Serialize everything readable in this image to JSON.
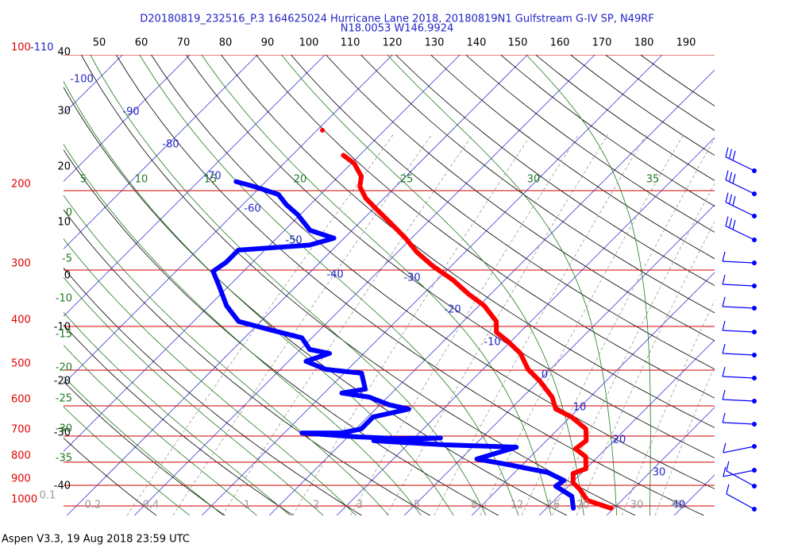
{
  "chart_data": {
    "type": "skewt",
    "title": "D20180819_232516_P.3 164625024 Hurricane Lane 2018, 20180819N1 Gulfstream G-IV SP, N49RF",
    "subtitle": "N18.0053 W146.9924",
    "footer": "Aspen V3.3, 19 Aug 2018  23:59 UTC",
    "ylim": [
      100,
      1050
    ],
    "yticks": [
      100,
      200,
      300,
      400,
      500,
      600,
      700,
      800,
      900,
      1000
    ],
    "log_y": true,
    "xlim": [
      -50.5,
      46
    ],
    "isotherms": [
      -110,
      -100,
      -90,
      -80,
      -70,
      -60,
      -50,
      -40,
      -30,
      -20,
      -10,
      0,
      10,
      20,
      30,
      40
    ],
    "dry_adiabats_top": [
      50,
      60,
      70,
      80,
      90,
      100,
      110,
      120,
      130,
      140,
      150,
      160,
      170,
      180,
      190
    ],
    "dry_adiabats_left": [
      40,
      30,
      20,
      10,
      0,
      -10,
      -20,
      -30,
      -40
    ],
    "moist_adiabats_top": [
      5,
      10,
      15,
      20,
      25,
      30,
      35
    ],
    "moist_adiabats_left": [
      0,
      -5,
      -10,
      -15,
      -20,
      -25,
      -30,
      -35
    ],
    "mixing_ratios": [
      0.1,
      0.2,
      0.4,
      1,
      2,
      3,
      5,
      8,
      12,
      16,
      20,
      30,
      40
    ],
    "series": [
      {
        "color": "#ff0000",
        "pressure": [
          167,
          174,
          186,
          196,
          208,
          221,
          235,
          255,
          274,
          294,
          316,
          339,
          360,
          390,
          412,
          432,
          459,
          498,
          529,
          574,
          610,
          635,
          675,
          717,
          747,
          778,
          827,
          847,
          889,
          918,
          972,
          1012
        ],
        "values": [
          -62.4,
          -59.6,
          -56.6,
          -55.3,
          -52.7,
          -49.2,
          -45.6,
          -40.9,
          -37.1,
          -32.7,
          -27.6,
          -23.3,
          -19.2,
          -15.1,
          -13.5,
          -10.4,
          -6.8,
          -3.3,
          0.2,
          4.4,
          6.7,
          10.2,
          14.1,
          15.9,
          15.5,
          18.2,
          20.0,
          18.8,
          20.2,
          22.1,
          24.9,
          29.6
        ]
      },
      {
        "color": "#ff0000",
        "pressure": [
          147
        ],
        "values": [
          -69.2
        ]
      },
      {
        "color": "#0000ff",
        "pressure": [
          191,
          196,
          204,
          215,
          226,
          245,
          255,
          264,
          271,
          288,
          302,
          325,
          360,
          390,
          407,
          424,
          450,
          459,
          478,
          498,
          508,
          551,
          562,
          574,
          597,
          610,
          635,
          675,
          689,
          689,
          703,
          709,
          707,
          717,
          732,
          741,
          787,
          810,
          843,
          878,
          904,
          952,
          1012
        ],
        "values": [
          -74.4,
          -70.9,
          -66.2,
          -63.5,
          -60.4,
          -56.2,
          -51.5,
          -54.1,
          -63.9,
          -63.9,
          -64.5,
          -61.5,
          -57.4,
          -53.3,
          -47.4,
          -41.5,
          -38.6,
          -35.1,
          -37.4,
          -33.3,
          -27.4,
          -24.5,
          -27.4,
          -22.7,
          -18.6,
          -15.1,
          -19.2,
          -19.2,
          -21.5,
          -27.4,
          -18.6,
          -12.5,
          -6.1,
          -15.6,
          -4.5,
          6.5,
          2.4,
          7.9,
          14.9,
          18.5,
          18.1,
          22.0,
          24.0
        ]
      }
    ]
  }
}
